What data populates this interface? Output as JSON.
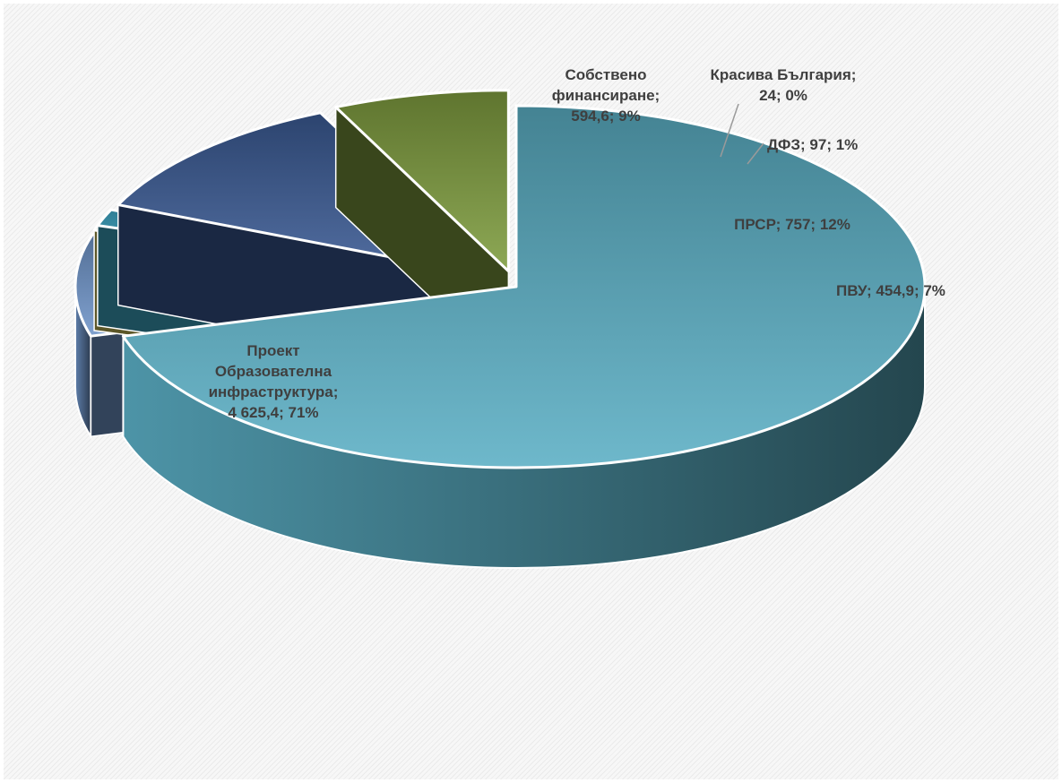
{
  "chart_data": {
    "type": "pie",
    "style": "3d-exploded",
    "slices": [
      {
        "label": "Проект Образователна инфраструктура",
        "value": 4625.4,
        "percent": 71,
        "color": "#5aaec4",
        "label_lines": [
          "Проект",
          "Образователна",
          "инфраструктура;",
          "4 625,4; 71%"
        ]
      },
      {
        "label": "Собствено финансиране",
        "value": 594.6,
        "percent": 9,
        "color": "#6f94c8",
        "label_lines": [
          "Собствено",
          "финансиране;",
          "594,6; 9%"
        ]
      },
      {
        "label": "Красива България",
        "value": 24,
        "percent": 0,
        "color": "#cdc15a",
        "label_lines": [
          "Красива България;",
          "24; 0%"
        ]
      },
      {
        "label": "ДФЗ",
        "value": 97,
        "percent": 1,
        "color": "#3fa8c6",
        "label_lines": [
          "ДФЗ; 97; 1%"
        ]
      },
      {
        "label": "ПРСР",
        "value": 757,
        "percent": 12,
        "color": "#3a5a94",
        "label_lines": [
          "ПРСР; 757; 12%"
        ]
      },
      {
        "label": "ПВУ",
        "value": 454.9,
        "percent": 7,
        "color": "#7e9c3e",
        "label_lines": [
          "ПВУ; 454,9; 7%"
        ]
      }
    ],
    "legend": "none"
  }
}
